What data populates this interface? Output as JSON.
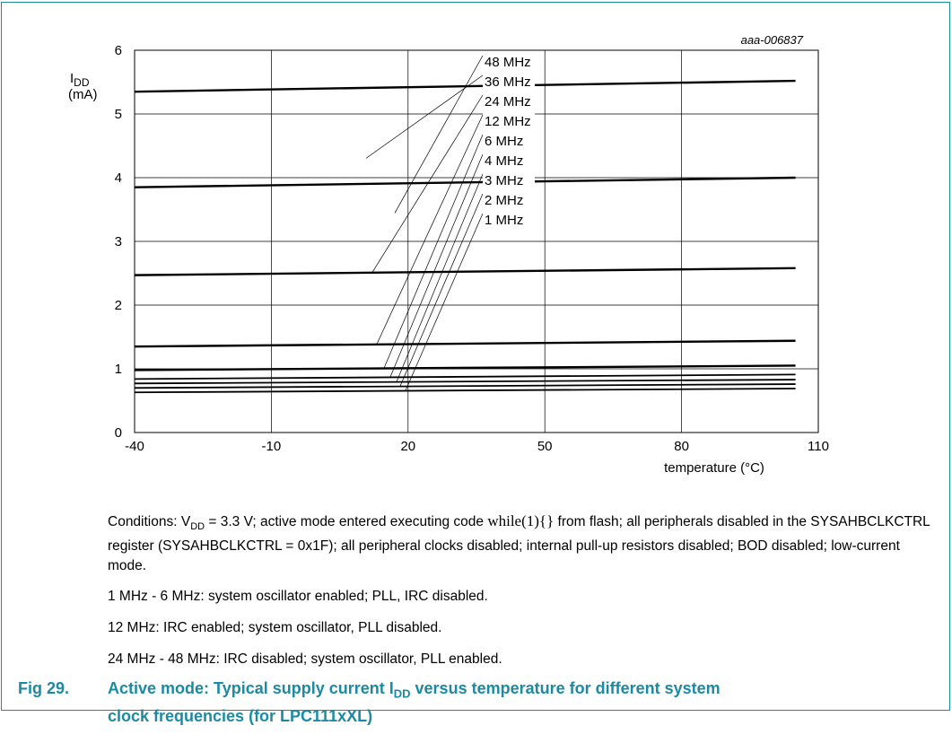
{
  "ref_code": "aaa-006837",
  "chart_data": {
    "type": "line",
    "ylabel_main": "I",
    "ylabel_sub": "DD",
    "ylabel_unit": "(mA)",
    "xlabel": "temperature (°C)",
    "xlim": [
      -40,
      110
    ],
    "ylim": [
      0,
      6
    ],
    "x_ticks": [
      "-40",
      "-10",
      "20",
      "50",
      "80",
      "110"
    ],
    "y_ticks": [
      "0",
      "1",
      "2",
      "3",
      "4",
      "5",
      "6"
    ],
    "grid": true,
    "x": [
      -40,
      105
    ],
    "series": [
      {
        "name": "48 MHz",
        "values": [
          5.35,
          5.52
        ]
      },
      {
        "name": "36 MHz",
        "values": [
          3.85,
          4.0
        ]
      },
      {
        "name": "24 MHz",
        "values": [
          2.47,
          2.58
        ]
      },
      {
        "name": "12 MHz",
        "values": [
          1.35,
          1.44
        ]
      },
      {
        "name": "6 MHz",
        "values": [
          0.98,
          1.05
        ]
      },
      {
        "name": "4 MHz",
        "values": [
          0.84,
          0.91
        ]
      },
      {
        "name": "3 MHz",
        "values": [
          0.77,
          0.83
        ]
      },
      {
        "name": "2 MHz",
        "values": [
          0.7,
          0.76
        ]
      },
      {
        "name": "1 MHz",
        "values": [
          0.63,
          0.69
        ]
      }
    ]
  },
  "notes": {
    "cond_prefix": "Conditions: V",
    "cond_sub": "DD",
    "cond_mid": " = 3.3 V; active mode entered executing code ",
    "cond_code": "while(1){}",
    "cond_rest": " from flash; all peripherals disabled in the SYSAHBCLKCTRL register (SYSAHBCLKCTRL = 0x1F); all peripheral clocks disabled; internal pull-up resistors disabled; BOD disabled; low-current mode.",
    "line1": "1 MHz - 6 MHz: system oscillator enabled; PLL, IRC disabled.",
    "line2": "12 MHz: IRC enabled; system oscillator, PLL disabled.",
    "line3": "24 MHz - 48 MHz: IRC disabled; system oscillator, PLL enabled."
  },
  "caption": {
    "number": "Fig 29.",
    "text_a": "Active mode: Typical supply current I",
    "text_sub": "DD",
    "text_b": " versus temperature for different system",
    "text_c": "clock frequencies (for LPC111xXL)"
  }
}
